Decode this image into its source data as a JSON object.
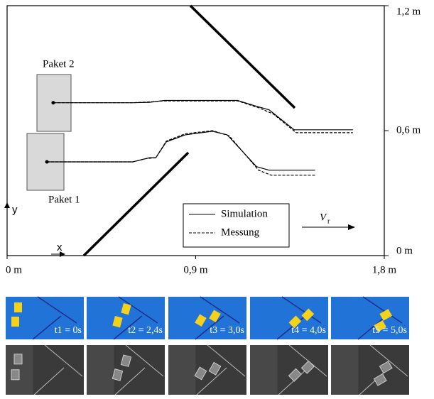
{
  "chart_data": {
    "type": "line",
    "xlim": [
      0,
      1.8
    ],
    "ylim": [
      0,
      1.2
    ],
    "xticks": [
      {
        "value": 0,
        "label": "0 m"
      },
      {
        "value": 0.9,
        "label": "0,9 m"
      },
      {
        "value": 1.8,
        "label": "1,8 m"
      }
    ],
    "yticks": [
      {
        "value": 0,
        "label": "0 m"
      },
      {
        "value": 0.6,
        "label": "0,6 m"
      },
      {
        "value": 1.2,
        "label": "1,2 m"
      }
    ],
    "xlabel": "x",
    "ylabel": "y",
    "packages": [
      {
        "label": "Paket 2"
      },
      {
        "label": "Paket 1"
      }
    ],
    "velocity_label": "V",
    "velocity_subscript": "r",
    "series": [
      {
        "name": "Simulation",
        "color": "#000000",
        "dash": false,
        "paths": [
          {
            "x": [
              0.22,
              0.6,
              0.68,
              0.75,
              1.1,
              1.18,
              1.25,
              1.37,
              1.65
            ],
            "y": [
              0.734,
              0.734,
              0.736,
              0.745,
              0.745,
              0.72,
              0.7,
              0.604,
              0.604
            ]
          },
          {
            "x": [
              0.19,
              0.6,
              0.68,
              0.71,
              0.76,
              0.85,
              0.98,
              1.05,
              1.19,
              1.25,
              1.47
            ],
            "y": [
              0.45,
              0.45,
              0.47,
              0.47,
              0.546,
              0.58,
              0.597,
              0.58,
              0.427,
              0.41,
              0.41
            ]
          }
        ]
      },
      {
        "name": "Messung",
        "color": "#000000",
        "dash": true,
        "paths": [
          {
            "x": [
              0.22,
              0.6,
              0.68,
              0.75,
              1.1,
              1.2,
              1.27,
              1.38,
              1.65
            ],
            "y": [
              0.734,
              0.734,
              0.738,
              0.743,
              0.743,
              0.71,
              0.68,
              0.59,
              0.59
            ]
          },
          {
            "x": [
              0.19,
              0.6,
              0.66,
              0.71,
              0.76,
              0.85,
              0.98,
              1.06,
              1.2,
              1.26,
              1.47
            ],
            "y": [
              0.45,
              0.45,
              0.465,
              0.47,
              0.55,
              0.585,
              0.6,
              0.575,
              0.41,
              0.386,
              0.386
            ]
          }
        ]
      }
    ]
  },
  "snapshots": {
    "labels": [
      "t1 = 0s",
      "t2 = 2,4s",
      "t3 = 3,0s",
      "t4 = 4,0s",
      "t5 = 5,0s"
    ]
  }
}
